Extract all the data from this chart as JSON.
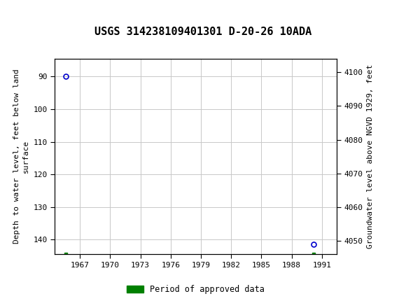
{
  "title": "USGS 314238109401301 D-20-26 10ADA",
  "ylabel_left": "Depth to water level, feet below land\nsurface",
  "ylabel_right": "Groundwater level above NGVD 1929, feet",
  "xlim": [
    1964.5,
    1992.5
  ],
  "ylim_left": [
    144.5,
    84.5
  ],
  "ylim_right": [
    4046,
    4104
  ],
  "yticks_left": [
    90,
    100,
    110,
    120,
    130,
    140
  ],
  "yticks_right": [
    4100,
    4090,
    4080,
    4070,
    4060,
    4050
  ],
  "xticks": [
    1967,
    1970,
    1973,
    1976,
    1979,
    1982,
    1985,
    1988,
    1991
  ],
  "data_points": [
    {
      "year": 1965.6,
      "depth": 90.0
    },
    {
      "year": 1990.2,
      "depth": 141.5
    }
  ],
  "green_bar_points": [
    {
      "year": 1965.6,
      "depth": 144.5
    },
    {
      "year": 1990.2,
      "depth": 144.5
    }
  ],
  "marker_color": "#0000cc",
  "marker_size": 5,
  "grid_color": "#c8c8c8",
  "background_color": "#ffffff",
  "header_color": "#006633",
  "legend_label": "Period of approved data",
  "legend_color": "#008000",
  "title_fontsize": 11,
  "tick_fontsize": 8,
  "label_fontsize": 8
}
